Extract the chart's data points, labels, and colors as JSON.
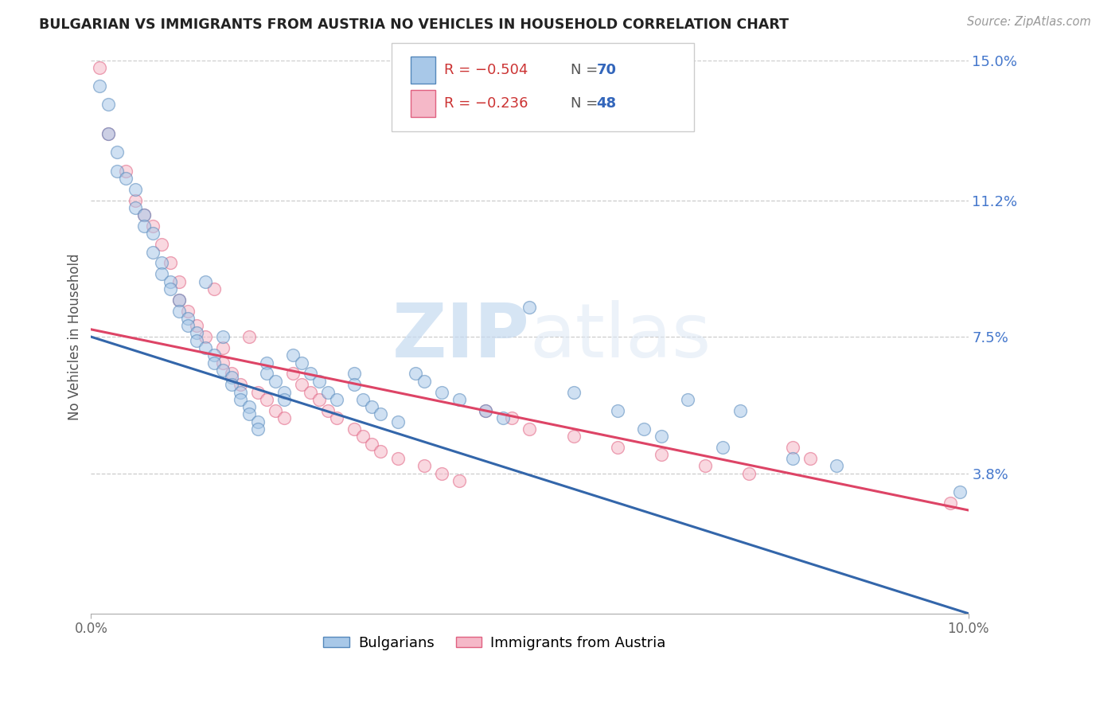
{
  "title": "BULGARIAN VS IMMIGRANTS FROM AUSTRIA NO VEHICLES IN HOUSEHOLD CORRELATION CHART",
  "source": "Source: ZipAtlas.com",
  "ylabel": "No Vehicles in Household",
  "xlim": [
    0.0,
    0.1
  ],
  "ylim": [
    0.0,
    0.15
  ],
  "ytick_labels": [
    "3.8%",
    "7.5%",
    "11.2%",
    "15.0%"
  ],
  "ytick_values": [
    0.038,
    0.075,
    0.112,
    0.15
  ],
  "legend_blue_r": "-0.504",
  "legend_blue_n": "70",
  "legend_pink_r": "-0.236",
  "legend_pink_n": "48",
  "blue_fill": "#a8c8e8",
  "blue_edge": "#5588bb",
  "pink_fill": "#f5b8c8",
  "pink_edge": "#e06080",
  "blue_line_color": "#3366aa",
  "pink_line_color": "#dd4466",
  "blue_line": [
    0.0,
    0.075,
    0.1,
    0.0
  ],
  "pink_line": [
    0.0,
    0.077,
    0.1,
    0.028
  ],
  "blue_scatter": [
    [
      0.001,
      0.143
    ],
    [
      0.002,
      0.138
    ],
    [
      0.002,
      0.13
    ],
    [
      0.003,
      0.125
    ],
    [
      0.003,
      0.12
    ],
    [
      0.004,
      0.118
    ],
    [
      0.005,
      0.115
    ],
    [
      0.005,
      0.11
    ],
    [
      0.006,
      0.108
    ],
    [
      0.006,
      0.105
    ],
    [
      0.007,
      0.103
    ],
    [
      0.007,
      0.098
    ],
    [
      0.008,
      0.095
    ],
    [
      0.008,
      0.092
    ],
    [
      0.009,
      0.09
    ],
    [
      0.009,
      0.088
    ],
    [
      0.01,
      0.085
    ],
    [
      0.01,
      0.082
    ],
    [
      0.011,
      0.08
    ],
    [
      0.011,
      0.078
    ],
    [
      0.012,
      0.076
    ],
    [
      0.012,
      0.074
    ],
    [
      0.013,
      0.09
    ],
    [
      0.013,
      0.072
    ],
    [
      0.014,
      0.07
    ],
    [
      0.014,
      0.068
    ],
    [
      0.015,
      0.075
    ],
    [
      0.015,
      0.066
    ],
    [
      0.016,
      0.064
    ],
    [
      0.016,
      0.062
    ],
    [
      0.017,
      0.06
    ],
    [
      0.017,
      0.058
    ],
    [
      0.018,
      0.056
    ],
    [
      0.018,
      0.054
    ],
    [
      0.019,
      0.052
    ],
    [
      0.019,
      0.05
    ],
    [
      0.02,
      0.068
    ],
    [
      0.02,
      0.065
    ],
    [
      0.021,
      0.063
    ],
    [
      0.022,
      0.06
    ],
    [
      0.022,
      0.058
    ],
    [
      0.023,
      0.07
    ],
    [
      0.024,
      0.068
    ],
    [
      0.025,
      0.065
    ],
    [
      0.026,
      0.063
    ],
    [
      0.027,
      0.06
    ],
    [
      0.028,
      0.058
    ],
    [
      0.03,
      0.065
    ],
    [
      0.03,
      0.062
    ],
    [
      0.031,
      0.058
    ],
    [
      0.032,
      0.056
    ],
    [
      0.033,
      0.054
    ],
    [
      0.035,
      0.052
    ],
    [
      0.037,
      0.065
    ],
    [
      0.038,
      0.063
    ],
    [
      0.04,
      0.06
    ],
    [
      0.042,
      0.058
    ],
    [
      0.045,
      0.055
    ],
    [
      0.047,
      0.053
    ],
    [
      0.05,
      0.083
    ],
    [
      0.055,
      0.06
    ],
    [
      0.06,
      0.055
    ],
    [
      0.063,
      0.05
    ],
    [
      0.065,
      0.048
    ],
    [
      0.068,
      0.058
    ],
    [
      0.072,
      0.045
    ],
    [
      0.074,
      0.055
    ],
    [
      0.08,
      0.042
    ],
    [
      0.085,
      0.04
    ],
    [
      0.099,
      0.033
    ]
  ],
  "pink_scatter": [
    [
      0.001,
      0.148
    ],
    [
      0.002,
      0.13
    ],
    [
      0.004,
      0.12
    ],
    [
      0.005,
      0.112
    ],
    [
      0.006,
      0.108
    ],
    [
      0.007,
      0.105
    ],
    [
      0.008,
      0.1
    ],
    [
      0.009,
      0.095
    ],
    [
      0.01,
      0.09
    ],
    [
      0.01,
      0.085
    ],
    [
      0.011,
      0.082
    ],
    [
      0.012,
      0.078
    ],
    [
      0.013,
      0.075
    ],
    [
      0.014,
      0.088
    ],
    [
      0.015,
      0.072
    ],
    [
      0.015,
      0.068
    ],
    [
      0.016,
      0.065
    ],
    [
      0.017,
      0.062
    ],
    [
      0.018,
      0.075
    ],
    [
      0.019,
      0.06
    ],
    [
      0.02,
      0.058
    ],
    [
      0.021,
      0.055
    ],
    [
      0.022,
      0.053
    ],
    [
      0.023,
      0.065
    ],
    [
      0.024,
      0.062
    ],
    [
      0.025,
      0.06
    ],
    [
      0.026,
      0.058
    ],
    [
      0.027,
      0.055
    ],
    [
      0.028,
      0.053
    ],
    [
      0.03,
      0.05
    ],
    [
      0.031,
      0.048
    ],
    [
      0.032,
      0.046
    ],
    [
      0.033,
      0.044
    ],
    [
      0.035,
      0.042
    ],
    [
      0.038,
      0.04
    ],
    [
      0.04,
      0.038
    ],
    [
      0.042,
      0.036
    ],
    [
      0.045,
      0.055
    ],
    [
      0.048,
      0.053
    ],
    [
      0.05,
      0.05
    ],
    [
      0.055,
      0.048
    ],
    [
      0.06,
      0.045
    ],
    [
      0.065,
      0.043
    ],
    [
      0.07,
      0.04
    ],
    [
      0.075,
      0.038
    ],
    [
      0.08,
      0.045
    ],
    [
      0.082,
      0.042
    ],
    [
      0.098,
      0.03
    ]
  ],
  "watermark_zip": "ZIP",
  "watermark_atlas": "atlas",
  "marker_size": 130,
  "alpha": 0.55
}
